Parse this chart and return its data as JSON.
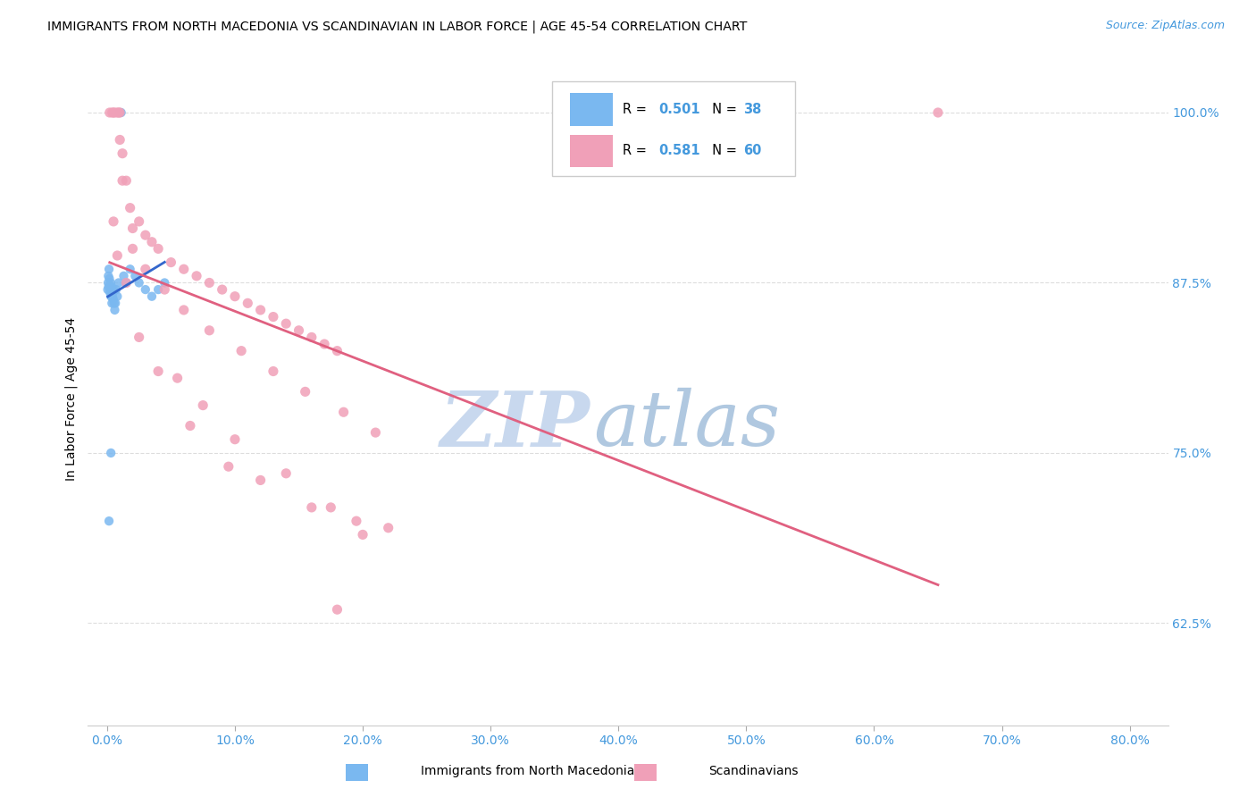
{
  "title": "IMMIGRANTS FROM NORTH MACEDONIA VS SCANDINAVIAN IN LABOR FORCE | AGE 45-54 CORRELATION CHART",
  "source": "Source: ZipAtlas.com",
  "xlabel_ticks": [
    "0.0%",
    "10.0%",
    "20.0%",
    "30.0%",
    "40.0%",
    "50.0%",
    "60.0%",
    "70.0%",
    "80.0%"
  ],
  "xlabel_vals": [
    0.0,
    10.0,
    20.0,
    30.0,
    40.0,
    50.0,
    60.0,
    70.0,
    80.0
  ],
  "ylabel_ticks": [
    "62.5%",
    "75.0%",
    "87.5%",
    "100.0%"
  ],
  "ylabel_vals": [
    62.5,
    75.0,
    87.5,
    100.0
  ],
  "ylabel_label": "In Labor Force | Age 45-54",
  "xlim": [
    0.0,
    80.0
  ],
  "ylim_min": 55.0,
  "ylim_max": 103.0,
  "watermark_zip": "ZIP",
  "watermark_atlas": "atlas",
  "blue_color": "#7ab8f0",
  "blue_color_line": "#3366cc",
  "pink_color": "#f0a0b8",
  "pink_color_line": "#e06080",
  "legend_R_blue": "0.501",
  "legend_N_blue": "38",
  "legend_R_pink": "0.581",
  "legend_N_pink": "60",
  "axis_label_color": "#4499dd",
  "grid_color": "#dddddd",
  "blue_x": [
    0.05,
    0.08,
    0.1,
    0.12,
    0.15,
    0.18,
    0.2,
    0.22,
    0.25,
    0.28,
    0.3,
    0.32,
    0.35,
    0.38,
    0.4,
    0.42,
    0.45,
    0.48,
    0.5,
    0.55,
    0.6,
    0.65,
    0.7,
    0.8,
    0.9,
    1.0,
    1.1,
    1.3,
    1.5,
    1.8,
    2.2,
    2.5,
    3.0,
    3.5,
    4.0,
    4.5,
    0.15,
    0.3
  ],
  "blue_y": [
    87.0,
    87.5,
    88.0,
    87.2,
    88.5,
    87.8,
    87.3,
    86.8,
    87.0,
    87.5,
    86.5,
    87.0,
    87.2,
    86.0,
    86.5,
    87.0,
    86.8,
    86.3,
    87.0,
    86.0,
    85.5,
    86.0,
    87.0,
    86.5,
    87.5,
    100.0,
    100.0,
    88.0,
    87.5,
    88.5,
    88.0,
    87.5,
    87.0,
    86.5,
    87.0,
    87.5,
    70.0,
    75.0
  ],
  "pink_x": [
    0.2,
    0.4,
    0.5,
    0.6,
    0.8,
    0.9,
    1.0,
    1.0,
    1.2,
    1.5,
    1.8,
    2.0,
    2.5,
    3.0,
    3.5,
    4.0,
    5.0,
    6.0,
    7.0,
    8.0,
    9.0,
    10.0,
    11.0,
    12.0,
    13.0,
    14.0,
    15.0,
    16.0,
    17.0,
    18.0,
    1.2,
    2.0,
    3.0,
    4.5,
    6.0,
    8.0,
    10.5,
    13.0,
    15.5,
    18.5,
    21.0,
    0.5,
    0.8,
    1.5,
    2.5,
    4.0,
    6.5,
    9.5,
    12.0,
    16.0,
    19.5,
    22.0,
    5.5,
    7.5,
    10.0,
    14.0,
    17.5,
    20.0,
    65.0,
    18.0
  ],
  "pink_y": [
    100.0,
    100.0,
    100.0,
    100.0,
    100.0,
    100.0,
    100.0,
    98.0,
    97.0,
    95.0,
    93.0,
    91.5,
    92.0,
    91.0,
    90.5,
    90.0,
    89.0,
    88.5,
    88.0,
    87.5,
    87.0,
    86.5,
    86.0,
    85.5,
    85.0,
    84.5,
    84.0,
    83.5,
    83.0,
    82.5,
    95.0,
    90.0,
    88.5,
    87.0,
    85.5,
    84.0,
    82.5,
    81.0,
    79.5,
    78.0,
    76.5,
    92.0,
    89.5,
    87.5,
    83.5,
    81.0,
    77.0,
    74.0,
    73.0,
    71.0,
    70.0,
    69.5,
    80.5,
    78.5,
    76.0,
    73.5,
    71.0,
    69.0,
    100.0,
    63.5
  ]
}
